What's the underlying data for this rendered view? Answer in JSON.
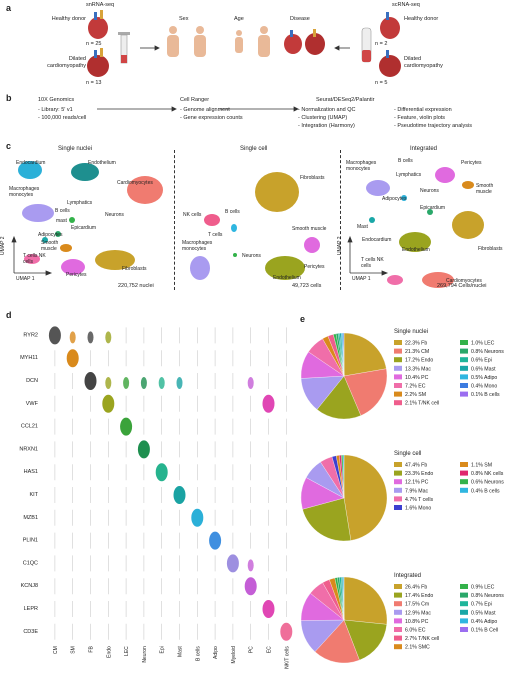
{
  "panels": {
    "a": "a",
    "b": "b",
    "c": "c",
    "d": "d",
    "e": "e"
  },
  "a": {
    "snrna_title": "snRNA-seq",
    "scrna_title": "scRNA-seq",
    "healthy_left": "Healthy donor",
    "n_healthy_left": "n = 25",
    "dcm_left": "Dilated cardiomyopathy",
    "n_dcm_left": "n = 13",
    "healthy_right": "Healthy donor",
    "n_healthy_right": "n = 2",
    "dcm_right": "Dilated cardiomyopathy",
    "n_dcm_right": "n = 5",
    "sex": "Sex",
    "age": "Age",
    "disease": "Disease"
  },
  "b": {
    "col1_title": "10X Genomics",
    "col1_items": [
      "- Library: 5′ v1",
      "- 100,000 reads/cell"
    ],
    "col2_title": "Cell Ranger",
    "col2_items": [
      "- Genome alignment",
      "- Gene expression counts"
    ],
    "col3_title": "Seurat/DESeq2/Palantir",
    "col3_items": [
      "- Normalization and QC",
      "- Clustering (UMAP)",
      "- Integration (Harmony)"
    ],
    "col4_items": [
      "- Differential expression",
      "- Feature, violin plots",
      "- Pseudotime trajectory analysis"
    ]
  },
  "c": {
    "umap_titles": [
      "Single nuclei",
      "Single cell",
      "Integrated"
    ],
    "axis_y": "UMAP 2",
    "axis_x": "UMAP 1",
    "counts": [
      "220,752 nuclei",
      "49,723 cells",
      "269,794 Cells/nuclei"
    ],
    "sn_labels": {
      "endocardium": "Endocardium",
      "endothelium": "Endothelium",
      "cardiomyocytes": "Cardiomyocytes",
      "macrophages": "Macrophages monocytes",
      "lymphatics": "Lymphatics",
      "bcells": "B cells",
      "neurons": "Neurons",
      "mast": "mast",
      "epicardium": "Epicardium",
      "adipocytes": "Adipocytes",
      "smooth": "Smooth muscle",
      "tcells": "T cells NK cells",
      "pericytes": "Pericytes",
      "fibroblasts": "Fibroblasts"
    },
    "sc_labels": {
      "nk": "NK cells",
      "bcells": "B cells",
      "fibroblasts": "Fibroblasts",
      "tcells": "T cells",
      "macrophages": "Macrophages monocytes",
      "neurons": "Neurons",
      "smooth": "Smooth muscle",
      "pericytes": "Pericytes",
      "endothelium": "Endothelium"
    },
    "int_labels": {
      "macrophages": "Macrophages monocytes",
      "bcells": "B cells",
      "lymphatics": "Lymphatics",
      "pericytes": "Pericytes",
      "smooth": "Smooth muscle",
      "neurons": "Neurons",
      "adipocytes": "Adipocytes",
      "epicardium": "Epicardium",
      "mast": "Mast",
      "endocardium": "Endocardium",
      "endothelium": "Endothelium",
      "fibroblasts": "Fibroblasts",
      "tcells": "T cells NK cells",
      "cardiomyocytes": "Cardiomyocytes"
    }
  },
  "chart_data": [
    {
      "type": "violin",
      "genes": [
        "RYR2",
        "MYH11",
        "DCN",
        "VWF",
        "CCL21",
        "NRXN1",
        "HAS1",
        "KIT",
        "MZB1",
        "PLIN1",
        "C1QC",
        "KCNJ8",
        "LEPR",
        "CD3E"
      ],
      "cell_types": [
        "CM",
        "SM",
        "FB",
        "Endo",
        "LEC",
        "Neuron",
        "Epi",
        "Mast",
        "B cells",
        "Adipo",
        "Myeloid",
        "PC",
        "EC",
        "NK/T cells"
      ],
      "colors": [
        "#555555",
        "#d98a1c",
        "#444444",
        "#9aa41f",
        "#3aa33a",
        "#1e8f4f",
        "#26b38e",
        "#1aa3a3",
        "#2bb0d8",
        "#3f8fe0",
        "#9d8fe0",
        "#c45ed6",
        "#e046b4",
        "#ef6f9a"
      ],
      "high_expression": [
        [
          0,
          0
        ],
        [
          1,
          1
        ],
        [
          2,
          2
        ],
        [
          3,
          3
        ],
        [
          3,
          12
        ],
        [
          4,
          4
        ],
        [
          5,
          5
        ],
        [
          6,
          6
        ],
        [
          7,
          7
        ],
        [
          8,
          8
        ],
        [
          9,
          9
        ],
        [
          10,
          10
        ],
        [
          11,
          11
        ],
        [
          12,
          12
        ],
        [
          13,
          13
        ]
      ],
      "moderate_expression": [
        [
          2,
          3
        ],
        [
          2,
          4
        ],
        [
          2,
          5
        ],
        [
          2,
          6
        ],
        [
          2,
          7
        ],
        [
          2,
          11
        ],
        [
          0,
          1
        ],
        [
          0,
          2
        ],
        [
          0,
          3
        ],
        [
          10,
          11
        ]
      ]
    },
    {
      "type": "pie",
      "title": "Single nuclei",
      "values": [
        22.3,
        21.3,
        17.2,
        13.3,
        10.4,
        7.2,
        2.2,
        2.1,
        1.0,
        0.8,
        0.6,
        0.6,
        0.5,
        0.4,
        0.1
      ],
      "legend": [
        "22.3% Fb",
        "21.3% CM",
        "17.2% Endo",
        "13.3% Mac",
        "10.4% PC",
        "7.2% EC",
        "2.2% SM",
        "2.1% T/NK cell",
        "1.0% LEC",
        "0.8% Neurons",
        "0.6% Epi",
        "0.6% Mast",
        "0.5% Adipo",
        "0.4% Mono",
        "0.1% B cells"
      ],
      "colors": [
        "#c8a22b",
        "#f07b70",
        "#9aa41f",
        "#a99bf0",
        "#e06adf",
        "#f06ea9",
        "#d98a1c",
        "#ef5d8c",
        "#33b24a",
        "#2aa86a",
        "#1fb59a",
        "#19a7a7",
        "#2fb6e0",
        "#3c7be0",
        "#9b6ef0"
      ]
    },
    {
      "type": "pie",
      "title": "Single cell",
      "values": [
        47.4,
        23.3,
        12.1,
        7.9,
        4.7,
        1.6,
        1.1,
        0.8,
        0.6,
        0.4
      ],
      "legend": [
        "47.4% Fb",
        "23.3% Endo",
        "12.1% PC",
        "7.9% Mac",
        "4.7% T cells",
        "1.6% Mono",
        "1.1% SM",
        "0.8% NK cells",
        "0.6% Neurons",
        "0.4% B cells"
      ],
      "colors": [
        "#c8a22b",
        "#9aa41f",
        "#e06adf",
        "#a99bf0",
        "#f06ea9",
        "#3c3fd0",
        "#d98a1c",
        "#e0286e",
        "#33b24a",
        "#2fb6e0"
      ]
    },
    {
      "type": "pie",
      "title": "Integrated",
      "values": [
        26.4,
        17.4,
        17.5,
        12.9,
        10.8,
        6.0,
        2.7,
        2.1,
        0.9,
        0.8,
        0.7,
        0.5,
        0.4,
        0.1
      ],
      "legend": [
        "26.4% Fb",
        "17.4% Endo",
        "17.5% Cm",
        "12.9% Mac",
        "10.8% PC",
        "6.0% EC",
        "2.7% T/NK cell",
        "2.1% SMC",
        "0.9% LEC",
        "0.8% Neurons",
        "0.7% Epi",
        "0.5% Mast",
        "0.4% Adipo",
        "0.1% B Cell"
      ],
      "colors": [
        "#c8a22b",
        "#9aa41f",
        "#f07b70",
        "#a99bf0",
        "#e06adf",
        "#f06ea9",
        "#ef5d8c",
        "#d98a1c",
        "#33b24a",
        "#2aa86a",
        "#1fb59a",
        "#19a7a7",
        "#2fb6e0",
        "#9b6ef0"
      ]
    }
  ]
}
